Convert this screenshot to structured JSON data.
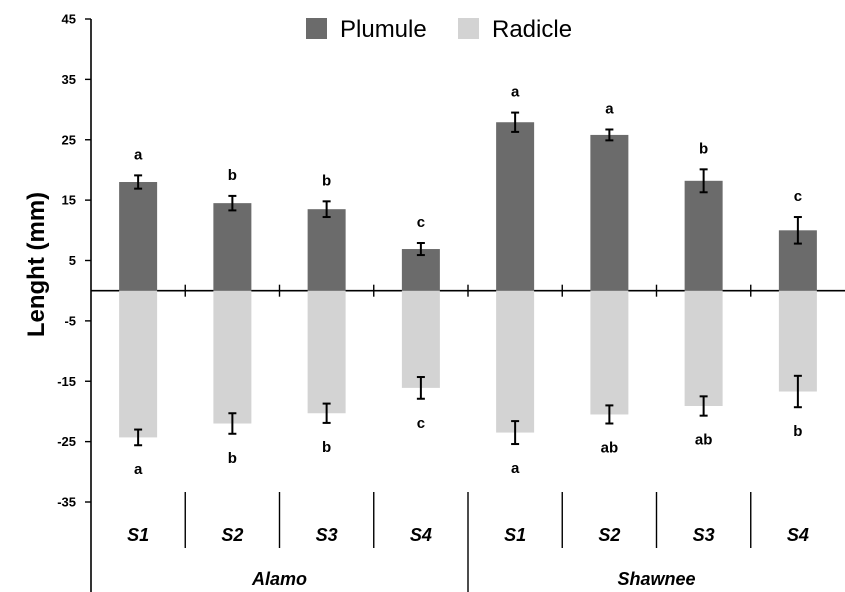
{
  "chart_data": {
    "type": "bar",
    "ylabel": "Lenght (mm)",
    "ylim": [
      -35,
      45
    ],
    "yticks": [
      45,
      35,
      25,
      15,
      5,
      -5,
      -15,
      -25,
      -35
    ],
    "groups": [
      {
        "name": "Alamo",
        "categories": [
          "S1",
          "S2",
          "S3",
          "S4"
        ]
      },
      {
        "name": "Shawnee",
        "categories": [
          "S1",
          "S2",
          "S3",
          "S4"
        ]
      }
    ],
    "series": [
      {
        "name": "Plumule",
        "color": "#6b6b6b",
        "values": [
          18.0,
          14.5,
          13.5,
          6.9,
          27.9,
          25.8,
          18.2,
          10.0
        ],
        "errors": [
          1.1,
          1.2,
          1.3,
          1.0,
          1.6,
          0.9,
          1.9,
          2.2
        ],
        "letters": [
          "a",
          "b",
          "b",
          "c",
          "a",
          "a",
          "b",
          "c"
        ]
      },
      {
        "name": "Radicle",
        "color": "#d3d3d3",
        "values": [
          -24.3,
          -22.0,
          -20.3,
          -16.1,
          -23.5,
          -20.5,
          -19.1,
          -16.7
        ],
        "errors": [
          1.3,
          1.7,
          1.6,
          1.8,
          1.9,
          1.5,
          1.6,
          2.6
        ],
        "letters": [
          "a",
          "b",
          "b",
          "c",
          "a",
          "ab",
          "ab",
          "b"
        ]
      }
    ]
  }
}
